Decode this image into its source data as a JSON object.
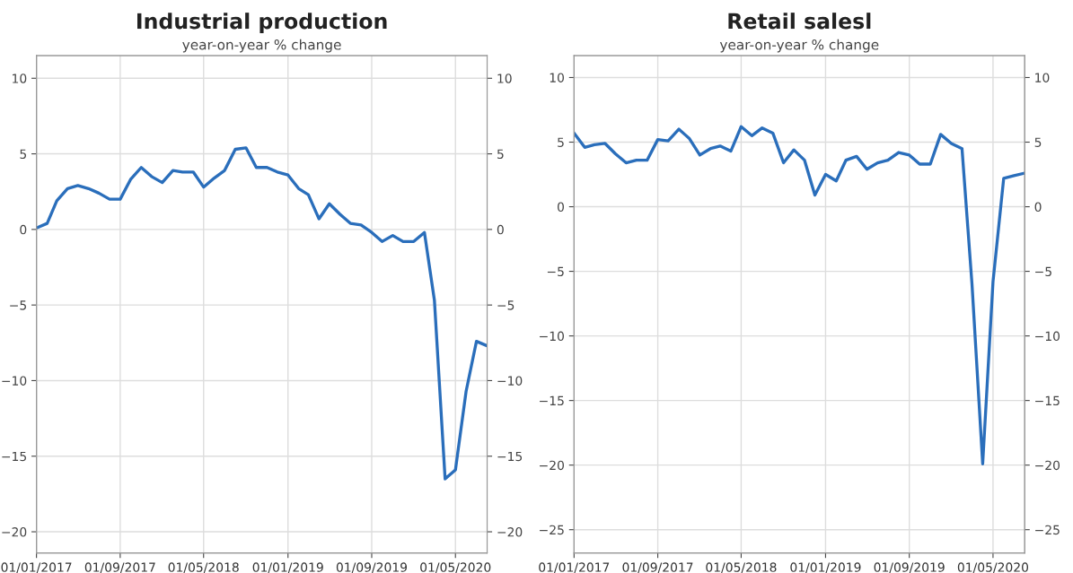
{
  "chart_data": [
    {
      "type": "line",
      "title": "Industrial production",
      "subtitle": "year-on-year % change",
      "x": [
        "2017-01",
        "2017-02",
        "2017-03",
        "2017-04",
        "2017-05",
        "2017-06",
        "2017-07",
        "2017-08",
        "2017-09",
        "2017-10",
        "2017-11",
        "2017-12",
        "2018-01",
        "2018-02",
        "2018-03",
        "2018-04",
        "2018-05",
        "2018-06",
        "2018-07",
        "2018-08",
        "2018-09",
        "2018-10",
        "2018-11",
        "2018-12",
        "2019-01",
        "2019-02",
        "2019-03",
        "2019-04",
        "2019-05",
        "2019-06",
        "2019-07",
        "2019-08",
        "2019-09",
        "2019-10",
        "2019-11",
        "2019-12",
        "2020-01",
        "2020-02",
        "2020-03",
        "2020-04",
        "2020-05",
        "2020-06",
        "2020-07",
        "2020-08"
      ],
      "series": [
        {
          "color": "#2a6ebb",
          "values": [
            0.1,
            0.4,
            1.9,
            2.7,
            2.9,
            2.7,
            2.4,
            2.0,
            2.0,
            3.3,
            4.1,
            3.5,
            3.1,
            3.9,
            3.8,
            3.8,
            2.8,
            3.4,
            3.9,
            5.3,
            5.4,
            4.1,
            4.1,
            3.8,
            3.6,
            2.7,
            2.3,
            0.7,
            1.7,
            1.0,
            0.4,
            0.3,
            -0.2,
            -0.8,
            -0.4,
            -0.8,
            -0.8,
            -0.2,
            -4.7,
            -16.5,
            -15.9,
            -10.7,
            -7.4,
            -7.7
          ]
        }
      ],
      "xlim": [
        "2017-01",
        "2020-08"
      ],
      "xticks": [
        {
          "value": "2017-01-01",
          "label": "01/01/2017"
        },
        {
          "value": "2017-09-01",
          "label": "01/09/2017"
        },
        {
          "value": "2018-05-01",
          "label": "01/05/2018"
        },
        {
          "value": "2019-01-01",
          "label": "01/01/2019"
        },
        {
          "value": "2019-09-01",
          "label": "01/09/2019"
        },
        {
          "value": "2020-05-01",
          "label": "01/05/2020"
        }
      ],
      "ylim": [
        -21.4,
        11.5
      ],
      "yticks": [
        -20,
        -15,
        -10,
        -5,
        0,
        5,
        10
      ],
      "y2lim": [
        -21.4,
        11.5
      ],
      "y2ticks": [
        -20,
        -15,
        -10,
        -5,
        0,
        5,
        10
      ],
      "grid": true,
      "line_style": "solid",
      "marker": "none"
    },
    {
      "type": "line",
      "title": "Retail salesl",
      "subtitle": "year-on-year % change",
      "x": [
        "2017-01",
        "2017-02",
        "2017-03",
        "2017-04",
        "2017-05",
        "2017-06",
        "2017-07",
        "2017-08",
        "2017-09",
        "2017-10",
        "2017-11",
        "2017-12",
        "2018-01",
        "2018-02",
        "2018-03",
        "2018-04",
        "2018-05",
        "2018-06",
        "2018-07",
        "2018-08",
        "2018-09",
        "2018-10",
        "2018-11",
        "2018-12",
        "2019-01",
        "2019-02",
        "2019-03",
        "2019-04",
        "2019-05",
        "2019-06",
        "2019-07",
        "2019-08",
        "2019-09",
        "2019-10",
        "2019-11",
        "2019-12",
        "2020-01",
        "2020-02",
        "2020-03",
        "2020-04",
        "2020-05",
        "2020-06",
        "2020-07",
        "2020-08"
      ],
      "series": [
        {
          "color": "#2a6ebb",
          "values": [
            5.7,
            4.6,
            4.8,
            4.9,
            4.1,
            3.4,
            3.6,
            3.6,
            5.2,
            5.1,
            6.0,
            5.3,
            4.0,
            4.5,
            4.7,
            4.3,
            6.2,
            5.5,
            6.1,
            5.7,
            3.4,
            4.4,
            3.6,
            0.9,
            2.5,
            2.0,
            3.6,
            3.9,
            2.9,
            3.4,
            3.6,
            4.2,
            4.0,
            3.3,
            3.3,
            5.6,
            4.9,
            4.5,
            -6.0,
            -19.9,
            -5.8,
            2.2,
            2.4,
            2.6
          ]
        }
      ],
      "xlim": [
        "2017-01",
        "2020-08"
      ],
      "xticks": [
        {
          "value": "2017-01-01",
          "label": "01/01/2017"
        },
        {
          "value": "2017-09-01",
          "label": "01/09/2017"
        },
        {
          "value": "2018-05-01",
          "label": "01/05/2018"
        },
        {
          "value": "2019-01-01",
          "label": "01/01/2019"
        },
        {
          "value": "2019-09-01",
          "label": "01/09/2019"
        },
        {
          "value": "2020-05-01",
          "label": "01/05/2020"
        }
      ],
      "ylim": [
        -26.8,
        11.7
      ],
      "yticks": [
        -25,
        -20,
        -15,
        -10,
        -5,
        0,
        5,
        10
      ],
      "y2lim": [
        -26.8,
        11.7
      ],
      "y2ticks": [
        -25,
        -20,
        -15,
        -10,
        -5,
        0,
        5,
        10
      ],
      "grid": true,
      "line_style": "solid",
      "marker": "none"
    }
  ]
}
